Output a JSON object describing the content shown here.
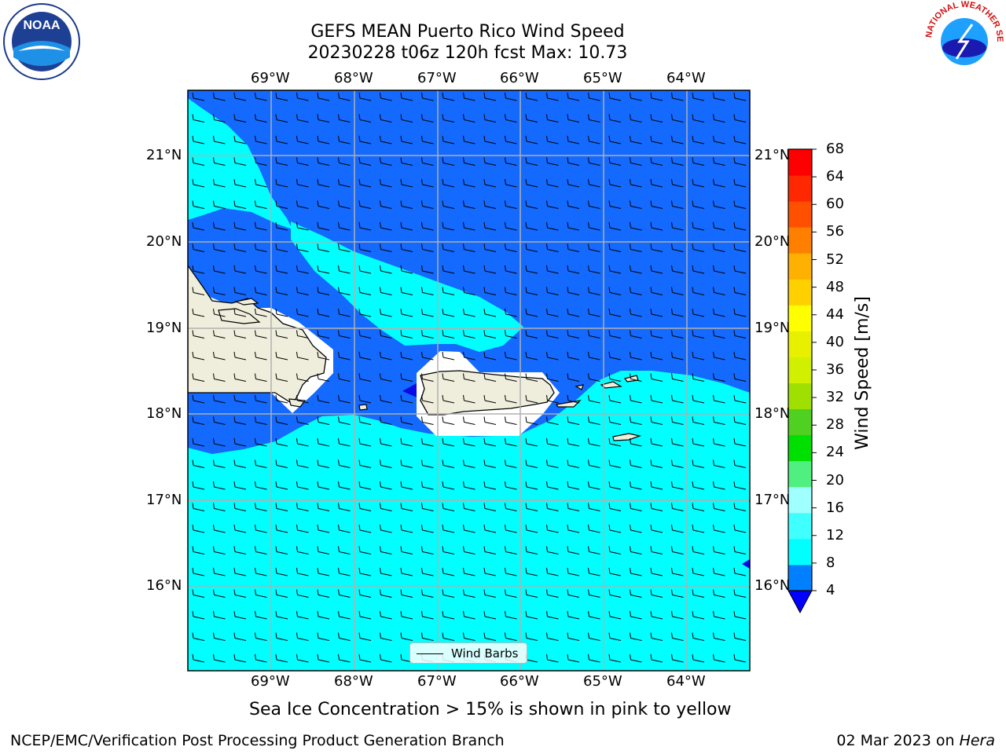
{
  "title_line1": "GEFS MEAN Puerto Rico Wind Speed",
  "title_line2": "20230228 t06z 120h fcst   Max: 10.73",
  "top_lon_labels": [
    "69°W",
    "68°W",
    "67°W",
    "66°W",
    "65°W",
    "64°W"
  ],
  "bottom_lon_labels": [
    "69°W",
    "68°W",
    "67°W",
    "66°W",
    "65°W",
    "64°W"
  ],
  "left_lat_labels": [
    "21°N",
    "20°N",
    "19°N",
    "18°N",
    "17°N",
    "16°N"
  ],
  "right_lat_labels": [
    "21°N",
    "20°N",
    "19°N",
    "18°N",
    "17°N",
    "16°N"
  ],
  "legend_label": "Wind Barbs",
  "colorbar": {
    "label": "Wind Speed [m/s]",
    "ticks": [
      "4",
      "8",
      "12",
      "16",
      "20",
      "24",
      "28",
      "32",
      "36",
      "40",
      "44",
      "48",
      "52",
      "56",
      "60",
      "64",
      "68"
    ],
    "colors": [
      "#0080ff",
      "#00ffff",
      "#40ffff",
      "#a0ffff",
      "#50f080",
      "#00e000",
      "#50d020",
      "#a0e000",
      "#d0f000",
      "#e8f000",
      "#ffff00",
      "#ffd000",
      "#ffb000",
      "#ff8000",
      "#ff5000",
      "#ff2800",
      "#ff0000"
    ],
    "under_color": "#0000ff"
  },
  "map_colors": {
    "band_4_8": "#1469ff",
    "band_8_12": "#00ffff",
    "band_12_16": "#40ffff",
    "land": "#efeedc",
    "under": "#0a0ae6"
  },
  "sea_ice_note": "Sea Ice Concentration > 15% is shown in pink to yellow",
  "footer_left": "NCEP/EMC/Verification Post Processing Product Generation Branch",
  "footer_date": "02 Mar 2023 on ",
  "footer_machine": "Hera",
  "logos": {
    "noaa": "NOAA",
    "nws": "NATIONAL WEATHER SERVICE"
  }
}
